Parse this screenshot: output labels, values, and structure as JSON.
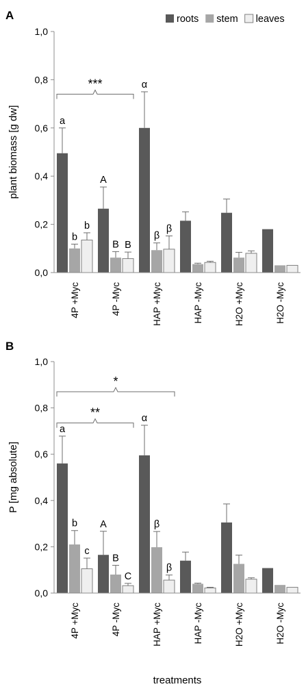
{
  "chart_data": [
    {
      "type": "bar",
      "panel_label": "A",
      "ylabel": "plant biomass [g dw]",
      "ylim": [
        0,
        1.0
      ],
      "yticks": [
        "0,0",
        "0,2",
        "0,4",
        "0,6",
        "0,8",
        "1,0"
      ],
      "grid": false,
      "legend_position": "top-right",
      "categories": [
        "4P +Myc",
        "4P -Myc",
        "HAP +Myc",
        "HAP -Myc",
        "H2O +Myc",
        "H2O -Myc"
      ],
      "series": [
        {
          "name": "roots",
          "color": "#595959",
          "values": [
            0.495,
            0.265,
            0.6,
            0.215,
            0.248,
            0.18
          ],
          "errors": [
            0.105,
            0.09,
            0.15,
            0.037,
            0.057,
            0.0
          ]
        },
        {
          "name": "stem",
          "color": "#a6a6a6",
          "values": [
            0.1,
            0.062,
            0.093,
            0.035,
            0.062,
            0.03
          ],
          "errors": [
            0.018,
            0.025,
            0.03,
            0.004,
            0.022,
            0.0
          ]
        },
        {
          "name": "leaves",
          "color": "#efefef",
          "values": [
            0.135,
            0.058,
            0.097,
            0.042,
            0.08,
            0.03
          ],
          "errors": [
            0.03,
            0.027,
            0.055,
            0.005,
            0.01,
            0.0
          ]
        }
      ],
      "bar_labels": [
        {
          "cat": 0,
          "series": 0,
          "text": "a"
        },
        {
          "cat": 0,
          "series": 1,
          "text": "b"
        },
        {
          "cat": 0,
          "series": 2,
          "text": "b"
        },
        {
          "cat": 1,
          "series": 0,
          "text": "A"
        },
        {
          "cat": 1,
          "series": 1,
          "text": "B"
        },
        {
          "cat": 1,
          "series": 2,
          "text": "B"
        },
        {
          "cat": 2,
          "series": 0,
          "text": "α"
        },
        {
          "cat": 2,
          "series": 1,
          "text": "β"
        },
        {
          "cat": 2,
          "series": 2,
          "text": "β"
        }
      ],
      "brackets": [
        {
          "from_cat": 0,
          "to_cat": 1,
          "y": 0.74,
          "text": "***"
        }
      ]
    },
    {
      "type": "bar",
      "panel_label": "B",
      "ylabel": "P [mg absolute]",
      "xlabel": "treatments",
      "ylim": [
        0,
        1.0
      ],
      "yticks": [
        "0,0",
        "0,2",
        "0,4",
        "0,6",
        "0,8",
        "1,0"
      ],
      "grid": false,
      "categories": [
        "4P +Myc",
        "4P -Myc",
        "HAP +Myc",
        "HAP -Myc",
        "H2O +Myc",
        "H2O -Myc"
      ],
      "series": [
        {
          "name": "roots",
          "color": "#595959",
          "values": [
            0.56,
            0.165,
            0.595,
            0.14,
            0.305,
            0.108
          ],
          "errors": [
            0.118,
            0.102,
            0.13,
            0.037,
            0.08,
            0.0
          ]
        },
        {
          "name": "stem",
          "color": "#a6a6a6",
          "values": [
            0.21,
            0.08,
            0.198,
            0.04,
            0.126,
            0.035
          ],
          "errors": [
            0.06,
            0.04,
            0.068,
            0.003,
            0.038,
            0.0
          ]
        },
        {
          "name": "leaves",
          "color": "#efefef",
          "values": [
            0.105,
            0.032,
            0.056,
            0.022,
            0.06,
            0.025
          ],
          "errors": [
            0.046,
            0.01,
            0.022,
            0.003,
            0.006,
            0.0
          ]
        }
      ],
      "bar_labels": [
        {
          "cat": 0,
          "series": 0,
          "text": "a"
        },
        {
          "cat": 0,
          "series": 1,
          "text": "b"
        },
        {
          "cat": 0,
          "series": 2,
          "text": "c"
        },
        {
          "cat": 1,
          "series": 0,
          "text": "A"
        },
        {
          "cat": 1,
          "series": 1,
          "text": "B"
        },
        {
          "cat": 1,
          "series": 2,
          "text": "C"
        },
        {
          "cat": 2,
          "series": 0,
          "text": "α"
        },
        {
          "cat": 2,
          "series": 1,
          "text": "β"
        },
        {
          "cat": 2,
          "series": 2,
          "text": "β"
        }
      ],
      "brackets": [
        {
          "from_cat": 0,
          "to_cat": 2,
          "y": 0.87,
          "text": "*"
        },
        {
          "from_cat": 0,
          "to_cat": 1,
          "y": 0.735,
          "text": "**"
        }
      ]
    }
  ]
}
